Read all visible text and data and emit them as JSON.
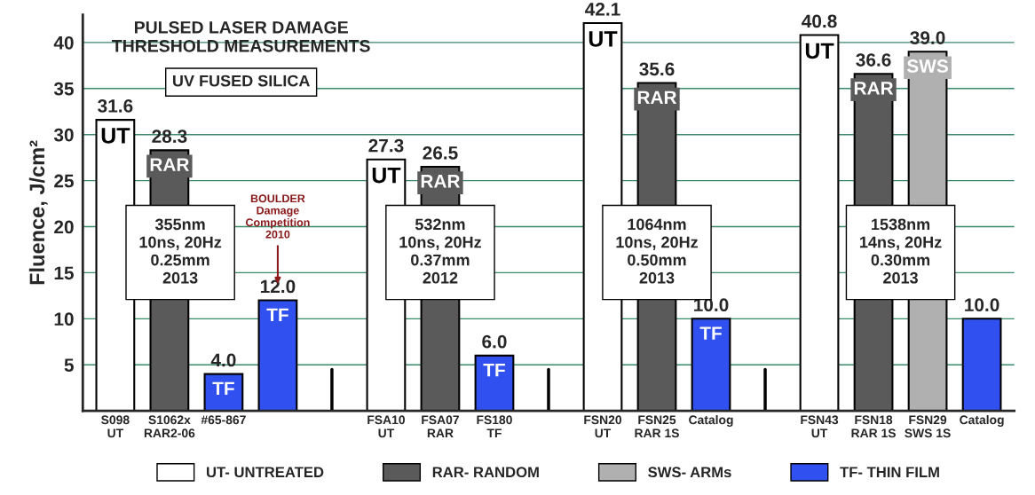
{
  "chart_data": {
    "type": "bar",
    "title": "PULSED LASER DAMAGE\nTHRESHOLD MEASUREMENTS",
    "subtitle": "UV FUSED SILICA",
    "ylabel": "Fluence, J/cm²",
    "categories": [
      "S098\nUT",
      "S1062x\nRAR2-06",
      "#65-867",
      null,
      null,
      "FSA10\nUT",
      "FSA07\nRAR",
      "FS180\nTF",
      null,
      "FSN20\nUT",
      "FSN25\nRAR 1S",
      "Catalog",
      null,
      "FSN43\nUT",
      "FSN18\nRAR 1S",
      "FSN29\nSWS 1S",
      "Catalog"
    ],
    "series": [
      {
        "name": "UT- UNTREATED",
        "color": "#ffffff",
        "values": [
          31.6,
          null,
          null,
          null,
          null,
          27.3,
          null,
          null,
          null,
          42.1,
          null,
          null,
          null,
          40.8,
          null,
          null,
          null
        ],
        "value_labels": [
          "31.6",
          null,
          null,
          null,
          null,
          "27.3",
          null,
          null,
          null,
          "42.1",
          null,
          null,
          null,
          "40.8",
          null,
          null,
          null
        ]
      },
      {
        "name": "RAR- RANDOM",
        "color": "#5a5a5a",
        "values": [
          null,
          28.3,
          null,
          null,
          null,
          null,
          26.5,
          null,
          null,
          null,
          35.6,
          null,
          null,
          null,
          36.6,
          null,
          null
        ],
        "value_labels": [
          null,
          "28.3",
          null,
          null,
          null,
          null,
          "26.5",
          null,
          null,
          null,
          "35.6",
          null,
          null,
          null,
          "36.6",
          null,
          null
        ]
      },
      {
        "name": "SWS- ARMs",
        "color": "#b0b0b0",
        "values": [
          null,
          null,
          null,
          null,
          null,
          null,
          null,
          null,
          null,
          null,
          null,
          null,
          null,
          null,
          null,
          39.0,
          null
        ],
        "value_labels": [
          null,
          null,
          null,
          null,
          null,
          null,
          null,
          null,
          null,
          null,
          null,
          null,
          null,
          null,
          null,
          "39.0",
          null
        ]
      },
      {
        "name": "TF- THIN FILM",
        "color": "#3050f0",
        "values": [
          null,
          null,
          4.0,
          12.0,
          null,
          null,
          null,
          6.0,
          null,
          null,
          null,
          10.0,
          null,
          null,
          null,
          null,
          10.0
        ],
        "value_labels": [
          null,
          null,
          "4.0",
          "12.0",
          null,
          null,
          null,
          "6.0",
          null,
          null,
          null,
          "10.0",
          null,
          null,
          null,
          null,
          "10.0"
        ]
      }
    ],
    "ylim": [
      0,
      43
    ],
    "yticks": [
      5,
      10,
      15,
      20,
      25,
      30,
      35,
      40
    ],
    "grid": "y",
    "legend": "bottom",
    "annotations": [
      "355nm\n10ns, 20Hz\n0.25mm\n2013",
      "532nm\n10ns, 20Hz\n0.37mm\n2012",
      "1064nm\n10ns, 20Hz\n0.50mm\n2013",
      "1538nm\n14ns, 20Hz\n0.30mm\n2013",
      "BOULDER\nDamage\nCompetition\n2010",
      {
        "text": "UT",
        "x": "S098\nUT",
        "y": 31.6
      },
      {
        "text": "RAR",
        "x": "S1062x\nRAR2-06",
        "y": 28.3
      },
      {
        "text": "TF",
        "x": "#65-867",
        "y": 4.0
      },
      {
        "text": "TF",
        "y": 12.0
      },
      {
        "text": "UT",
        "x": "FSA10\nUT",
        "y": 27.3
      },
      {
        "text": "RAR",
        "x": "FSA07\nRAR",
        "y": 26.5
      },
      {
        "text": "TF",
        "x": "FS180\nTF",
        "y": 6.0
      },
      {
        "text": "UT",
        "x": "FSN20\nUT",
        "y": 42.1
      },
      {
        "text": "RAR",
        "x": "FSN25\nRAR 1S",
        "y": 35.6
      },
      {
        "text": "TF",
        "x": "Catalog",
        "y": 10.0
      },
      {
        "text": "UT",
        "x": "FSN43\nUT",
        "y": 40.8
      },
      {
        "text": "RAR",
        "x": "FSN18\nRAR 1S",
        "y": 36.6
      },
      {
        "text": "SWS",
        "x": "FSN29\nSWS 1S",
        "y": 39.0
      }
    ]
  }
}
